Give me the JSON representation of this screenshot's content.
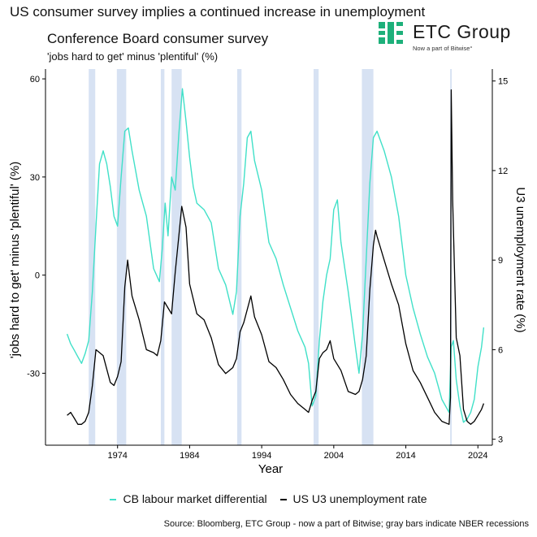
{
  "headline": "US consumer survey implies a continued increase in unemployment",
  "logo": {
    "name": "ETC Group",
    "tagline": "Now a part of Bitwise°",
    "color": "#1db07a"
  },
  "chart_data": {
    "type": "line",
    "title": "Conference Board consumer survey",
    "subtitle": "'jobs hard to get' minus 'plentiful' (%)",
    "xlabel": "Year",
    "ylabel_left": "'jobs hard to get' minus 'plentiful' (%)",
    "ylabel_right": "U3 unemployment rate (%)",
    "xlim": [
      1964,
      2026
    ],
    "ylim_left": [
      -52,
      63
    ],
    "ylim_right": [
      2.8,
      15.4
    ],
    "x_ticks": [
      1974,
      1984,
      1994,
      2004,
      2014,
      2024
    ],
    "y_ticks_left": [
      -30,
      0,
      30,
      60
    ],
    "y_ticks_right": [
      3,
      6,
      9,
      12,
      15
    ],
    "recessions": [
      [
        1970.0,
        1970.9
      ],
      [
        1973.9,
        1975.2
      ],
      [
        1980.0,
        1980.5
      ],
      [
        1981.5,
        1982.9
      ],
      [
        1990.6,
        1991.2
      ],
      [
        2001.2,
        2001.9
      ],
      [
        2007.9,
        2009.5
      ],
      [
        2020.15,
        2020.35
      ]
    ],
    "recession_color": "#d7e2f3",
    "grid": false,
    "legend_position": "bottom",
    "series": [
      {
        "name": "CB labour market differential",
        "axis": "left",
        "color": "#40e0c8",
        "x": [
          1967.0,
          1967.5,
          1968.0,
          1968.5,
          1969.0,
          1969.5,
          1970.0,
          1970.5,
          1971.0,
          1971.5,
          1972.0,
          1972.5,
          1973.0,
          1973.5,
          1974.0,
          1974.5,
          1975.0,
          1975.5,
          1976.0,
          1977.0,
          1978.0,
          1979.0,
          1979.8,
          1980.2,
          1980.6,
          1981.0,
          1981.5,
          1982.0,
          1982.5,
          1983.0,
          1983.5,
          1984.0,
          1984.5,
          1985.0,
          1986.0,
          1987.0,
          1988.0,
          1989.0,
          1990.0,
          1990.5,
          1991.0,
          1991.5,
          1992.0,
          1992.5,
          1993.0,
          1994.0,
          1995.0,
          1996.0,
          1997.0,
          1998.0,
          1999.0,
          2000.0,
          2000.5,
          2001.0,
          2001.5,
          2002.0,
          2002.5,
          2003.0,
          2003.5,
          2004.0,
          2004.5,
          2005.0,
          2006.0,
          2007.0,
          2007.5,
          2008.0,
          2008.5,
          2009.0,
          2009.5,
          2010.0,
          2011.0,
          2012.0,
          2013.0,
          2014.0,
          2015.0,
          2016.0,
          2017.0,
          2018.0,
          2019.0,
          2020.0,
          2020.3,
          2020.6,
          2021.0,
          2021.5,
          2022.0,
          2022.5,
          2023.0,
          2023.5,
          2024.0,
          2024.5,
          2024.8
        ],
        "values": [
          -18,
          -21,
          -23,
          -25,
          -27,
          -24,
          -20,
          -5,
          15,
          34,
          38,
          34,
          27,
          18,
          15,
          30,
          44,
          45,
          38,
          26,
          18,
          2,
          -2,
          8,
          22,
          12,
          30,
          26,
          43,
          57,
          47,
          36,
          27,
          22,
          20,
          16,
          2,
          -3,
          -12,
          -5,
          18,
          28,
          42,
          44,
          35,
          26,
          10,
          5,
          -3,
          -10,
          -17,
          -22,
          -27,
          -40,
          -37,
          -20,
          -8,
          0,
          5,
          20,
          23,
          10,
          -5,
          -22,
          -30,
          -18,
          5,
          28,
          42,
          44,
          38,
          30,
          18,
          0,
          -10,
          -18,
          -25,
          -30,
          -38,
          -42,
          -22,
          -20,
          -32,
          -40,
          -45,
          -44,
          -42,
          -38,
          -28,
          -22,
          -16
        ]
      },
      {
        "name": "US U3 unemployment rate",
        "axis": "right",
        "color": "#000000",
        "x": [
          1967.0,
          1967.5,
          1968.0,
          1968.5,
          1969.0,
          1969.5,
          1970.0,
          1970.5,
          1971.0,
          1972.0,
          1973.0,
          1973.5,
          1974.0,
          1974.5,
          1975.0,
          1975.4,
          1976.0,
          1977.0,
          1978.0,
          1979.0,
          1979.5,
          1980.0,
          1980.5,
          1981.0,
          1981.5,
          1982.0,
          1982.5,
          1982.9,
          1983.5,
          1984.0,
          1985.0,
          1986.0,
          1987.0,
          1988.0,
          1989.0,
          1990.0,
          1990.5,
          1991.0,
          1991.5,
          1992.5,
          1993.0,
          1994.0,
          1995.0,
          1996.0,
          1997.0,
          1998.0,
          1999.0,
          2000.0,
          2000.5,
          2001.0,
          2001.5,
          2002.0,
          2002.5,
          2003.0,
          2003.5,
          2004.0,
          2005.0,
          2006.0,
          2007.0,
          2007.5,
          2008.0,
          2008.5,
          2009.0,
          2009.5,
          2009.8,
          2010.0,
          2011.0,
          2012.0,
          2013.0,
          2014.0,
          2015.0,
          2016.0,
          2017.0,
          2018.0,
          2019.0,
          2020.0,
          2020.2,
          2020.3,
          2020.5,
          2021.0,
          2021.5,
          2022.0,
          2022.5,
          2023.0,
          2023.5,
          2024.0,
          2024.5,
          2024.8
        ],
        "values": [
          3.8,
          3.9,
          3.7,
          3.5,
          3.5,
          3.6,
          3.9,
          4.8,
          6.0,
          5.8,
          4.9,
          4.8,
          5.1,
          5.6,
          8.1,
          9.0,
          7.8,
          7.0,
          6.0,
          5.9,
          5.8,
          6.3,
          7.6,
          7.4,
          7.2,
          8.6,
          9.8,
          10.8,
          10.1,
          8.2,
          7.2,
          7.0,
          6.4,
          5.5,
          5.2,
          5.4,
          5.7,
          6.6,
          6.9,
          7.8,
          7.1,
          6.5,
          5.6,
          5.4,
          5.0,
          4.5,
          4.2,
          4.0,
          3.9,
          4.3,
          4.6,
          5.7,
          5.9,
          6.0,
          6.3,
          5.7,
          5.3,
          4.6,
          4.5,
          4.6,
          5.0,
          5.8,
          8.0,
          9.5,
          10.0,
          9.8,
          9.0,
          8.2,
          7.5,
          6.2,
          5.3,
          4.9,
          4.4,
          3.9,
          3.6,
          3.5,
          4.4,
          14.7,
          11.0,
          6.4,
          5.8,
          4.0,
          3.6,
          3.5,
          3.6,
          3.8,
          4.0,
          4.2
        ]
      }
    ]
  },
  "source": "Source: Bloomberg, ETC Group - now a part of Bitwise; gray bars indicate NBER recessions"
}
